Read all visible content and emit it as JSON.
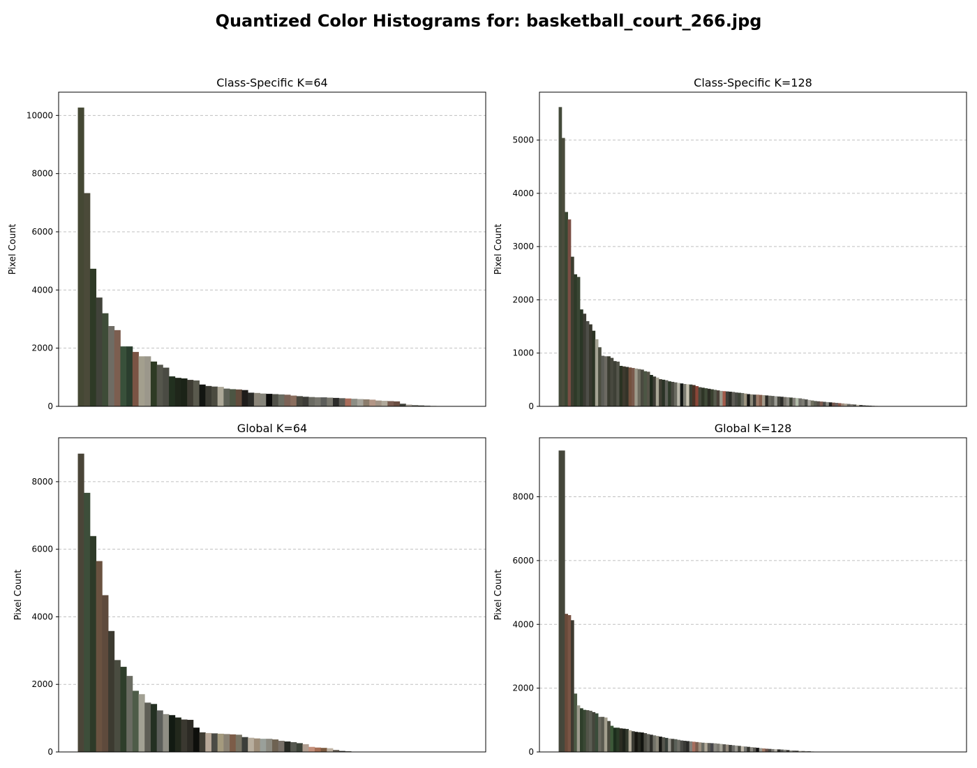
{
  "suptitle": "Quantized Color Histograms for: basketball_court_266.jpg",
  "chart_data": [
    {
      "type": "bar",
      "title": "Class-Specific K=64",
      "ylabel": "Pixel Count",
      "xlabel": "",
      "ylim": [
        0,
        10800
      ],
      "yticks": [
        0,
        2000,
        4000,
        6000,
        8000,
        10000
      ],
      "grid": "y-dashed",
      "x_axis_ticks": "none",
      "num_bins": 64,
      "values": [
        10270,
        7330,
        4730,
        3740,
        3200,
        2760,
        2620,
        2060,
        2060,
        1870,
        1720,
        1720,
        1540,
        1430,
        1330,
        1030,
        980,
        960,
        910,
        890,
        750,
        700,
        680,
        670,
        610,
        590,
        580,
        560,
        470,
        460,
        440,
        430,
        420,
        410,
        400,
        370,
        350,
        330,
        320,
        310,
        310,
        300,
        290,
        280,
        270,
        260,
        250,
        240,
        230,
        200,
        190,
        180,
        170,
        90,
        60,
        40,
        30,
        20,
        15,
        12,
        8,
        5,
        3,
        0
      ],
      "colors": [
        "#454834",
        "#4b4a39",
        "#2e3a26",
        "#41433a",
        "#3e4c38",
        "#6e6c64",
        "#7c5e50",
        "#38503a",
        "#2a3e2e",
        "#7a5444",
        "#a39f8e",
        "#9b978b",
        "#2e3b24",
        "#55564c",
        "#4a4b43",
        "#22301f",
        "#1f261a",
        "#1b2317",
        "#3e3c33",
        "#59594d",
        "#121511",
        "#3a3a32",
        "#4b4b40",
        "#ada898",
        "#5d6056",
        "#4c5543",
        "#624b3c",
        "#1e1c1a",
        "#2b2b28",
        "#8a8478",
        "#85847a",
        "#0c0c0b",
        "#505048",
        "#6b6d62",
        "#7c6256",
        "#8a6e5e",
        "#48473e",
        "#3d3c37",
        "#6a6a62",
        "#77766e",
        "#5c5d5a",
        "#7a786e",
        "#2c2c2a",
        "#5d5c55",
        "#a86c5a",
        "#8c8d84",
        "#a5a39a",
        "#8b7c6c",
        "#b39686",
        "#a29486",
        "#b0a89a",
        "#7a5c50",
        "#6b4e42",
        "#40413a",
        "#a8a298",
        "#5c5e55",
        "#3e4036",
        "#2e2e2c",
        "#8e8d85",
        "#6a685e",
        "#59594e",
        "#cac3b3",
        "#7a6b5e",
        "#4b4a43"
      ]
    },
    {
      "type": "bar",
      "title": "Class-Specific K=128",
      "ylabel": "Pixel Count",
      "xlabel": "",
      "ylim": [
        0,
        5900
      ],
      "yticks": [
        0,
        1000,
        2000,
        3000,
        4000,
        5000
      ],
      "grid": "y-dashed",
      "x_axis_ticks": "none",
      "num_bins": 128,
      "values": [
        5620,
        5040,
        3650,
        3510,
        2810,
        2480,
        2430,
        1820,
        1740,
        1600,
        1540,
        1420,
        1260,
        1110,
        950,
        940,
        940,
        910,
        850,
        840,
        760,
        750,
        740,
        730,
        720,
        710,
        700,
        690,
        660,
        650,
        590,
        560,
        540,
        510,
        500,
        490,
        470,
        460,
        450,
        440,
        430,
        420,
        415,
        410,
        400,
        380,
        360,
        350,
        340,
        330,
        320,
        310,
        300,
        290,
        285,
        280,
        275,
        270,
        260,
        255,
        250,
        240,
        230,
        225,
        220,
        220,
        215,
        210,
        205,
        200,
        195,
        190,
        185,
        180,
        175,
        170,
        165,
        160,
        155,
        150,
        140,
        130,
        120,
        110,
        100,
        95,
        90,
        85,
        80,
        75,
        70,
        65,
        60,
        55,
        50,
        45,
        40,
        35,
        30,
        25,
        20,
        15,
        12,
        10,
        8,
        6,
        5,
        4,
        3,
        2,
        2,
        1,
        1,
        1,
        0,
        0,
        0,
        0,
        0,
        0,
        0,
        0,
        0,
        0,
        0,
        0,
        0,
        0
      ],
      "colors": [
        "#444a3a",
        "#4a4c3c",
        "#3a4632",
        "#7a4e44",
        "#3c3e30",
        "#2e3a28",
        "#3a4634",
        "#2a3626",
        "#3c3c34",
        "#4e4e48",
        "#38382e",
        "#2c3424",
        "#a5a393",
        "#4c4e40",
        "#5c5d56",
        "#6c6a62",
        "#3a3c30",
        "#48493f",
        "#3e4036",
        "#54554b",
        "#2a3222",
        "#3e3a2e",
        "#333328",
        "#73503e",
        "#7a5a4c",
        "#9d9a8b",
        "#6e6c60",
        "#4a4a40",
        "#4c5644",
        "#565448",
        "#1e2a1c",
        "#3c3c34",
        "#aaa797",
        "#403f34",
        "#2a3326",
        "#5e5f58",
        "#2f3b2a",
        "#4a4a42",
        "#6a6a60",
        "#b9b7aa",
        "#121614",
        "#7a7a70",
        "#c7c2b1",
        "#3a3f33",
        "#4a3326",
        "#8a4638",
        "#44483c",
        "#2e3526",
        "#404a38",
        "#2c2c24",
        "#39402f",
        "#565a4c",
        "#4a4038",
        "#9a9a8c",
        "#a25a4a",
        "#3e3e38",
        "#2b2c26",
        "#5e5c55",
        "#494a44",
        "#3f4438",
        "#6b6d62",
        "#9b937f",
        "#161615",
        "#8a8778",
        "#3a3a35",
        "#9e7c6a",
        "#855d4c",
        "#a39a8a",
        "#2c2b28",
        "#6a6a60",
        "#5d5d55",
        "#9b9b93",
        "#46463e",
        "#2d2d2a",
        "#747068",
        "#8e8c84",
        "#3c4234",
        "#84817a",
        "#b2bcaa",
        "#6f6e68",
        "#7c7b73",
        "#4d4e48",
        "#a9a6a0",
        "#707060",
        "#5e5f54",
        "#58504a",
        "#7d5c50",
        "#4c4b47",
        "#8d8d86",
        "#222220",
        "#74574b",
        "#6b6160",
        "#8b5a4c",
        "#9f8b7c",
        "#a8a091",
        "#6c6b66",
        "#858079",
        "#595952",
        "#cac4b6",
        "#3f3f3b",
        "#5b5b58",
        "#46463f",
        "#2e2f2b",
        "#686860",
        "#b2a89c",
        "#77776c",
        "#525148",
        "#959488",
        "#4c4b43",
        "#a6a498",
        "#7e7c72",
        "#616158",
        "#3d3d36",
        "#8a8a80",
        "#535249",
        "#9c9a90",
        "#706f65",
        "#b0aea4",
        "#444440",
        "#2a2a27",
        "#888880",
        "#5a5a52",
        "#c0beb4",
        "#75746c",
        "#9a988f",
        "#3a3a35",
        "#68675f",
        "#b8b6ac"
      ]
    },
    {
      "type": "bar",
      "title": "Global K=64",
      "ylabel": "Pixel Count",
      "xlabel": "",
      "ylim": [
        0,
        9300
      ],
      "yticks": [
        0,
        2000,
        4000,
        6000,
        8000
      ],
      "grid": "y-dashed",
      "x_axis_ticks": "none",
      "num_bins": 64,
      "values": [
        8830,
        7670,
        6390,
        5650,
        4640,
        3580,
        2720,
        2520,
        2250,
        1810,
        1710,
        1460,
        1420,
        1230,
        1120,
        1090,
        1020,
        960,
        950,
        720,
        580,
        560,
        550,
        540,
        530,
        520,
        510,
        440,
        420,
        400,
        390,
        390,
        370,
        330,
        310,
        290,
        260,
        230,
        150,
        130,
        120,
        110,
        60,
        30,
        20,
        10,
        5,
        0,
        0,
        0,
        0,
        0,
        0,
        0,
        0,
        0,
        0,
        0,
        0,
        0,
        0,
        0,
        0,
        0
      ],
      "colors": [
        "#4a4538",
        "#3d4e3a",
        "#2e3a28",
        "#6a5240",
        "#5e4a3c",
        "#3c3a30",
        "#4a4c40",
        "#2e3e2a",
        "#6a6c62",
        "#4e5c48",
        "#a2a194",
        "#5e5e56",
        "#243022",
        "#5c5e5a",
        "#8f8e84",
        "#121a12",
        "#22281c",
        "#3a3830",
        "#2c2a24",
        "#0e0f0c",
        "#403d34",
        "#b8a898",
        "#4b4b45",
        "#a49a7e",
        "#8a8274",
        "#7c5c48",
        "#787464",
        "#3c3e3a",
        "#b8ae9e",
        "#9c8c78",
        "#9aa09a",
        "#8c8a80",
        "#6e6252",
        "#787068",
        "#282a24",
        "#565850",
        "#3c4238",
        "#b09e90",
        "#c4907c",
        "#a66e54",
        "#7a5a40",
        "#c0b4a4",
        "#6a6258",
        "#3a3a36",
        "#54504a",
        "#8c8478",
        "#5c5852",
        "#a8a49c",
        "#7e7a72",
        "#42403c",
        "#96928a",
        "#6c6860",
        "#b4b0a8",
        "#302e2a",
        "#8a8680",
        "#5e5a54",
        "#a09c94",
        "#4c4a46",
        "#c2beb6",
        "#74706a",
        "#36342e",
        "#928e86",
        "#686460",
        "#ae aaa2"
      ]
    },
    {
      "type": "bar",
      "title": "Global K=128",
      "ylabel": "Pixel Count",
      "xlabel": "",
      "ylim": [
        0,
        9850
      ],
      "yticks": [
        0,
        2000,
        4000,
        6000,
        8000
      ],
      "grid": "y-dashed",
      "x_axis_ticks": "none",
      "num_bins": 128,
      "values": [
        9450,
        9450,
        4330,
        4290,
        4130,
        1830,
        1460,
        1370,
        1320,
        1310,
        1290,
        1250,
        1210,
        1100,
        1100,
        1080,
        970,
        820,
        760,
        760,
        740,
        730,
        720,
        680,
        650,
        630,
        620,
        610,
        590,
        560,
        540,
        520,
        500,
        480,
        460,
        440,
        420,
        410,
        400,
        380,
        360,
        350,
        340,
        330,
        320,
        310,
        300,
        290,
        285,
        280,
        275,
        270,
        260,
        250,
        240,
        230,
        220,
        210,
        200,
        190,
        180,
        170,
        160,
        150,
        140,
        130,
        120,
        110,
        100,
        95,
        90,
        85,
        80,
        75,
        70,
        60,
        50,
        45,
        40,
        35,
        30,
        25,
        20,
        15,
        10,
        8,
        6,
        4,
        2,
        1,
        0,
        0,
        0,
        0,
        0,
        0,
        0,
        0,
        0,
        0,
        0,
        0,
        0,
        0,
        0,
        0,
        0,
        0,
        0,
        0,
        0,
        0,
        0,
        0,
        0,
        0,
        0,
        0,
        0,
        0,
        0,
        0,
        0,
        0,
        0,
        0,
        0,
        0
      ],
      "colors": [
        "#44463a",
        "#45473b",
        "#6a4a3a",
        "#7a5444",
        "#3e3a30",
        "#4c5a44",
        "#9e9c8e",
        "#2e3e2a",
        "#3a4834",
        "#525448",
        "#5c5e54",
        "#44463c",
        "#3a4c3a",
        "#6c6a60",
        "#5a5a50",
        "#a39f8e",
        "#4a4a3e",
        "#3c5838",
        "#1c2e1c",
        "#2a3a26",
        "#2c2c22",
        "#1e221a",
        "#343a2e",
        "#b2aa98",
        "#3c3c34",
        "#161610",
        "#282a22",
        "#121410",
        "#4c4c44",
        "#5e5e56",
        "#2e2e2a",
        "#727268",
        "#8a8678",
        "#161613",
        "#56564e",
        "#38403a",
        "#9a9890",
        "#404038",
        "#5a6058",
        "#6e6e66",
        "#4a4a46",
        "#3a3a36",
        "#2a2a28",
        "#82807a",
        "#a86e5e",
        "#7a5e50",
        "#9c8e7e",
        "#6a6a62",
        "#b0a898",
        "#5e5c56",
        "#46464a",
        "#8c8a82",
        "#7c7a72",
        "#a4a296",
        "#56544e",
        "#92887a",
        "#3e3e3a",
        "#6c6c68",
        "#98968e",
        "#484840",
        "#c0baac",
        "#747470",
        "#34342e",
        "#8a8880",
        "#5a5852",
        "#121212",
        "#9c9a92",
        "#a27a66",
        "#6a5048",
        "#4a4844",
        "#7e7c76",
        "#b8b4aa",
        "#2e2c28",
        "#5e5e5a",
        "#888880",
        "#3c3a36",
        "#a0a098",
        "#6a6864",
        "#4e4c48",
        "#c4c0b6",
        "#76746e",
        "#9a988e",
        "#42403c",
        "#ae aca4",
        "#5c5a56",
        "#828078",
        "#36342e",
        "#b4b2a8",
        "#686660",
        "#92908a",
        "#4c4a46",
        "#7a7872",
        "#a8a69e",
        "#5a5854",
        "#c8c4ba",
        "#3a3834",
        "#8c8a84",
        "#6e6c68",
        "#b0aea6",
        "#504e4a",
        "#807e78",
        "#9e9c94",
        "#46443e",
        "#bab8ae",
        "#64625e",
        "#8e8c86",
        "#2c2a26",
        "#a4a29a",
        "#5e5c58",
        "#7e7c78",
        "#c2c0b6",
        "#4a4844",
        "#96948e",
        "#6a6864",
        "#b6b4aa",
        "#3e3c38",
        "#88867e",
        "#a2a098",
        "#545250",
        "#7c7a74",
        "#c6c4ba",
        "#5a5854",
        "#9a9890",
        "#42403c",
        "#aeaca4",
        "#6c6a66",
        "#8a8882",
        "#bebcb2"
      ]
    }
  ]
}
